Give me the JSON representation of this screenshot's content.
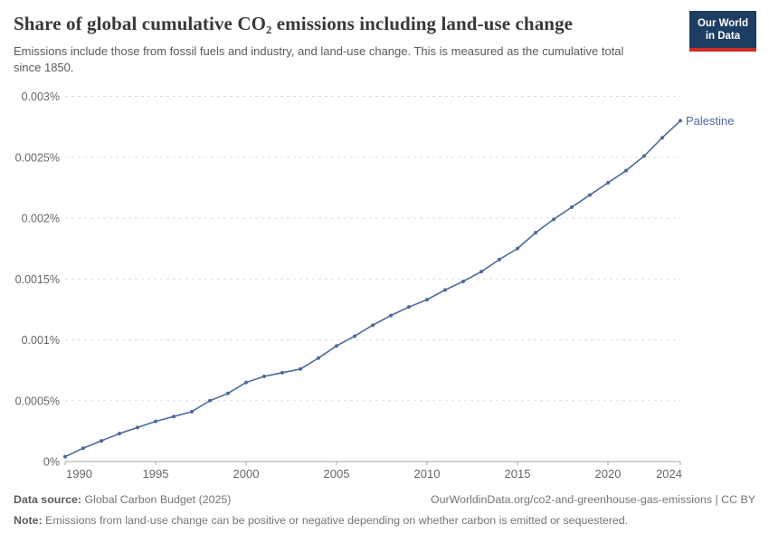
{
  "header": {
    "title": "Share of global cumulative CO₂ emissions including land-use change",
    "subtitle": "Emissions include those from fossil fuels and industry, and land-use change. This is measured as the cumulative total since 1850.",
    "logo": {
      "line1": "Our World",
      "line2": "in Data"
    }
  },
  "chart_data": {
    "type": "line",
    "title": "Share of global cumulative CO₂ emissions including land-use change",
    "unit": "%",
    "entity_label": "Palestine",
    "x": [
      1990,
      1991,
      1992,
      1993,
      1994,
      1995,
      1996,
      1997,
      1998,
      1999,
      2000,
      2001,
      2002,
      2003,
      2004,
      2005,
      2006,
      2007,
      2008,
      2009,
      2010,
      2011,
      2012,
      2013,
      2014,
      2015,
      2016,
      2017,
      2018,
      2019,
      2020,
      2021,
      2022,
      2023,
      2024
    ],
    "series": [
      {
        "name": "Palestine",
        "color": "#4c6a9c",
        "values": [
          4e-05,
          0.00011,
          0.00017,
          0.00023,
          0.00028,
          0.00033,
          0.00037,
          0.00041,
          0.0005,
          0.00056,
          0.00065,
          0.0007,
          0.00073,
          0.00076,
          0.00085,
          0.00095,
          0.00103,
          0.00112,
          0.0012,
          0.00127,
          0.00133,
          0.00141,
          0.00148,
          0.00156,
          0.00166,
          0.00175,
          0.00188,
          0.00199,
          0.00209,
          0.00219,
          0.00229,
          0.00239,
          0.00251,
          0.00266,
          0.0028
        ]
      }
    ],
    "xlim": [
      1990,
      2024
    ],
    "ylim": [
      0,
      0.003
    ],
    "x_ticks": [
      1990,
      1995,
      2000,
      2005,
      2010,
      2015,
      2020,
      2024
    ],
    "y_ticks": [
      {
        "value": 0,
        "label": "0%"
      },
      {
        "value": 0.0005,
        "label": "0.0005%"
      },
      {
        "value": 0.001,
        "label": "0.001%"
      },
      {
        "value": 0.0015,
        "label": "0.0015%"
      },
      {
        "value": 0.002,
        "label": "0.002%"
      },
      {
        "value": 0.0025,
        "label": "0.0025%"
      },
      {
        "value": 0.003,
        "label": "0.003%"
      }
    ],
    "grid": "horizontal-dashed",
    "legend_position": "end-of-line-label"
  },
  "footer": {
    "data_source_label": "Data source:",
    "data_source_value": "Global Carbon Budget (2025)",
    "link": "OurWorldinData.org/co2-and-greenhouse-gas-emissions | CC BY",
    "note_label": "Note:",
    "note_value": "Emissions from land-use change can be positive or negative depending on whether carbon is emitted or sequestered."
  },
  "colors": {
    "line": "#4c6a9c",
    "grid": "#dddddd",
    "axis": "#a5a5a5",
    "tick_text": "#666666",
    "logo_bg": "#1d3d63",
    "logo_stripe": "#cf2d24"
  }
}
